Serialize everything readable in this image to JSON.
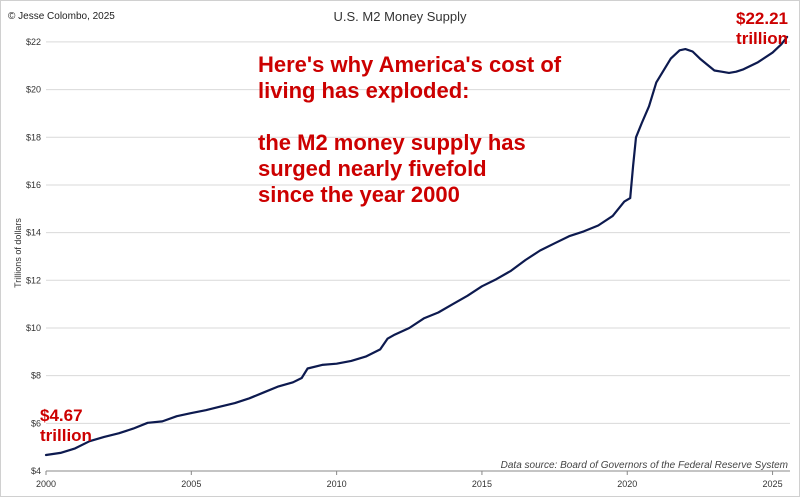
{
  "copyright": "© Jesse Colombo, 2025",
  "headline": {
    "lines": [
      "Here's why America's cost of",
      "living has exploded:",
      "",
      "the M2 money supply has",
      "surged nearly fivefold",
      "since the year 2000"
    ]
  },
  "annotations": {
    "start_value": "$4.67",
    "start_unit": "trillion",
    "end_value": "$22.21",
    "end_unit": "trillion"
  },
  "source": "Data source: Board of Governors of the Federal Reserve System",
  "colors": {
    "line": "#0d1a4f",
    "accent": "#cc0000",
    "grid": "#d9d9d9",
    "axis": "#888888"
  },
  "chart_data": {
    "type": "line",
    "title": "U.S. M2 Money Supply",
    "xlabel": "",
    "ylabel": "Trillions of dollars",
    "xlim": [
      2000,
      2025.6
    ],
    "ylim": [
      4,
      22.5
    ],
    "grid": true,
    "x_ticks": [
      2000,
      2005,
      2010,
      2015,
      2020,
      2025
    ],
    "y_ticks": [
      {
        "value": 4,
        "label": "$4"
      },
      {
        "value": 6,
        "label": "$6"
      },
      {
        "value": 8,
        "label": "$8"
      },
      {
        "value": 10,
        "label": "$10"
      },
      {
        "value": 12,
        "label": "$12"
      },
      {
        "value": 14,
        "label": "$14"
      },
      {
        "value": 16,
        "label": "$16"
      },
      {
        "value": 18,
        "label": "$18"
      },
      {
        "value": 20,
        "label": "$20"
      },
      {
        "value": 22,
        "label": "$22"
      }
    ],
    "series": [
      {
        "name": "M2",
        "x": [
          2000.0,
          2000.5,
          2001.0,
          2001.5,
          2002.0,
          2002.5,
          2003.0,
          2003.5,
          2004.0,
          2004.5,
          2005.0,
          2005.5,
          2006.0,
          2006.5,
          2007.0,
          2007.5,
          2008.0,
          2008.5,
          2008.8,
          2009.0,
          2009.5,
          2010.0,
          2010.5,
          2011.0,
          2011.5,
          2011.75,
          2012.0,
          2012.5,
          2013.0,
          2013.5,
          2014.0,
          2014.5,
          2015.0,
          2015.5,
          2016.0,
          2016.5,
          2017.0,
          2017.5,
          2018.0,
          2018.5,
          2019.0,
          2019.5,
          2019.9,
          2020.1,
          2020.2,
          2020.3,
          2020.5,
          2020.75,
          2021.0,
          2021.5,
          2021.8,
          2022.0,
          2022.25,
          2022.5,
          2022.75,
          2023.0,
          2023.25,
          2023.5,
          2023.75,
          2024.0,
          2024.5,
          2025.0,
          2025.3,
          2025.5
        ],
        "values": [
          4.67,
          4.76,
          4.95,
          5.25,
          5.43,
          5.58,
          5.78,
          6.02,
          6.08,
          6.3,
          6.43,
          6.55,
          6.7,
          6.85,
          7.05,
          7.3,
          7.55,
          7.72,
          7.9,
          8.3,
          8.45,
          8.5,
          8.62,
          8.8,
          9.1,
          9.55,
          9.72,
          10.0,
          10.4,
          10.65,
          11.0,
          11.35,
          11.75,
          12.05,
          12.4,
          12.85,
          13.25,
          13.55,
          13.85,
          14.05,
          14.3,
          14.7,
          15.3,
          15.45,
          16.8,
          18.0,
          18.6,
          19.3,
          20.3,
          21.3,
          21.65,
          21.7,
          21.6,
          21.3,
          21.05,
          20.8,
          20.75,
          20.7,
          20.75,
          20.85,
          21.15,
          21.55,
          21.9,
          22.21
        ]
      }
    ]
  }
}
